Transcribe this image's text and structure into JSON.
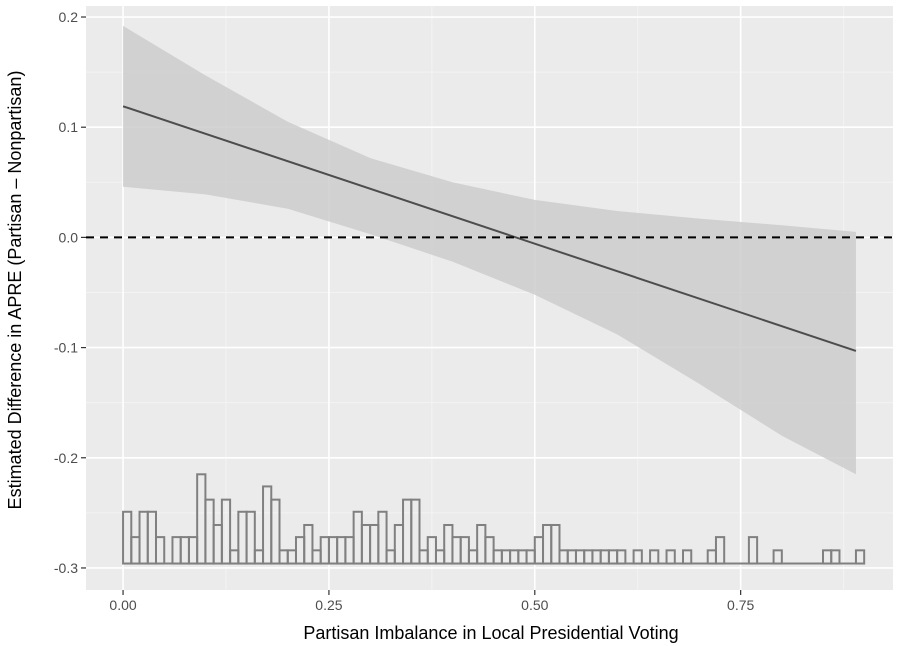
{
  "chart_data": {
    "type": "line",
    "title": "",
    "xlabel": "Partisan Imbalance in Local Presidential Voting",
    "ylabel": "Estimated Difference in APRE (Partisan – Nonpartisan)",
    "xlim": [
      -0.045,
      0.935
    ],
    "ylim": [
      -0.32,
      0.21
    ],
    "grid": true,
    "legend": "none",
    "x_ticks": [
      {
        "value": 0.0,
        "label": "0.00"
      },
      {
        "value": 0.25,
        "label": "0.25"
      },
      {
        "value": 0.5,
        "label": "0.50"
      },
      {
        "value": 0.75,
        "label": "0.75"
      }
    ],
    "y_ticks": [
      {
        "value": -0.3,
        "label": "-0.3"
      },
      {
        "value": -0.2,
        "label": "-0.2"
      },
      {
        "value": -0.1,
        "label": "-0.1"
      },
      {
        "value": 0.0,
        "label": "0.0"
      },
      {
        "value": 0.1,
        "label": "0.1"
      },
      {
        "value": 0.2,
        "label": "0.2"
      }
    ],
    "reference_line": {
      "y": 0.0,
      "style": "dashed"
    },
    "estimate_line": {
      "x": [
        0.0,
        0.89
      ],
      "y": [
        0.119,
        -0.103
      ]
    },
    "confidence_band": {
      "x": [
        0.0,
        0.1,
        0.2,
        0.3,
        0.4,
        0.5,
        0.6,
        0.7,
        0.8,
        0.89
      ],
      "upper": [
        0.192,
        0.147,
        0.105,
        0.072,
        0.05,
        0.034,
        0.024,
        0.017,
        0.011,
        0.005
      ],
      "lower": [
        0.046,
        0.039,
        0.026,
        0.003,
        -0.022,
        -0.052,
        -0.088,
        -0.133,
        -0.18,
        -0.215
      ]
    },
    "rug_histogram": {
      "baseline": -0.296,
      "bin_width": 0.01,
      "bin_starts": [
        0.0,
        0.01,
        0.02,
        0.03,
        0.04,
        0.06,
        0.07,
        0.08,
        0.09,
        0.1,
        0.11,
        0.12,
        0.13,
        0.14,
        0.15,
        0.16,
        0.17,
        0.18,
        0.19,
        0.2,
        0.21,
        0.22,
        0.23,
        0.24,
        0.25,
        0.26,
        0.27,
        0.28,
        0.29,
        0.3,
        0.31,
        0.32,
        0.33,
        0.34,
        0.35,
        0.36,
        0.37,
        0.38,
        0.39,
        0.4,
        0.41,
        0.42,
        0.43,
        0.44,
        0.45,
        0.46,
        0.47,
        0.48,
        0.49,
        0.5,
        0.51,
        0.52,
        0.53,
        0.54,
        0.55,
        0.56,
        0.57,
        0.58,
        0.59,
        0.6,
        0.62,
        0.64,
        0.66,
        0.68,
        0.71,
        0.72,
        0.76,
        0.79,
        0.85,
        0.86,
        0.89
      ],
      "tops": [
        -0.249,
        -0.272,
        -0.249,
        -0.249,
        -0.272,
        -0.272,
        -0.272,
        -0.272,
        -0.215,
        -0.238,
        -0.261,
        -0.238,
        -0.284,
        -0.249,
        -0.249,
        -0.284,
        -0.226,
        -0.238,
        -0.284,
        -0.284,
        -0.272,
        -0.261,
        -0.284,
        -0.272,
        -0.272,
        -0.272,
        -0.272,
        -0.249,
        -0.261,
        -0.261,
        -0.249,
        -0.284,
        -0.261,
        -0.238,
        -0.238,
        -0.284,
        -0.272,
        -0.284,
        -0.261,
        -0.272,
        -0.272,
        -0.284,
        -0.261,
        -0.272,
        -0.284,
        -0.284,
        -0.284,
        -0.284,
        -0.284,
        -0.272,
        -0.261,
        -0.261,
        -0.284,
        -0.284,
        -0.284,
        -0.284,
        -0.284,
        -0.284,
        -0.284,
        -0.284,
        -0.284,
        -0.284,
        -0.284,
        -0.284,
        -0.284,
        -0.272,
        -0.272,
        -0.284,
        -0.284,
        -0.284,
        -0.284
      ]
    },
    "colors": {
      "panel": "#ebebeb",
      "grid_major": "#ffffff",
      "grid_minor": "#f3f3f3",
      "band": "#cccccc",
      "line": "#4d4d4d",
      "reference": "#000000",
      "histogram": "#808080"
    }
  }
}
